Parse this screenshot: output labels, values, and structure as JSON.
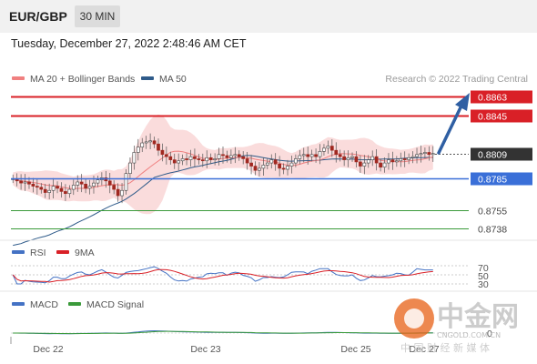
{
  "header": {
    "symbol": "EUR/GBP",
    "timeframe": "30 MIN"
  },
  "timestamp": "Tuesday, December 27, 2022 2:48:46 AM CET",
  "main_legend": {
    "items": [
      {
        "label": "MA 20 + Bollinger Bands",
        "color": "#f08080"
      },
      {
        "label": "MA 50",
        "color": "#2f5b8a"
      }
    ],
    "credit": "Research © 2022 Trading Central"
  },
  "price_levels": [
    {
      "label": "0.8863",
      "value": 0.8863,
      "color": "#d92027",
      "style": "resistance"
    },
    {
      "label": "0.8845",
      "value": 0.8845,
      "color": "#d92027",
      "style": "resistance"
    },
    {
      "label": "0.8809",
      "value": 0.8809,
      "color": "#333333",
      "style": "last-price"
    },
    {
      "label": "0.8785",
      "value": 0.8785,
      "color": "#3a6fd8",
      "style": "pivot"
    },
    {
      "label": "0.8755",
      "value": 0.8755,
      "color": "#3a9a3a",
      "style": "support"
    },
    {
      "label": "0.8738",
      "value": 0.8738,
      "color": "#3a9a3a",
      "style": "support"
    }
  ],
  "rsi_legend": [
    {
      "label": "RSI",
      "color": "#4472c4"
    },
    {
      "label": "9MA",
      "color": "#d92027"
    }
  ],
  "rsi_levels": [
    "70",
    "50",
    "30"
  ],
  "macd_legend": [
    {
      "label": "MACD",
      "color": "#4472c4"
    },
    {
      "label": "MACD Signal",
      "color": "#3a9a3a"
    }
  ],
  "macd_zero_label": "0",
  "x_axis_labels": [
    "Dec 22",
    "Dec 23",
    "Dec 25",
    "Dec 27"
  ],
  "watermark": {
    "title": "中金网",
    "subtitle": "中 国 财 经 新 媒 体",
    "domain": "CNGOLD.COM.CN"
  },
  "chart_data": {
    "type": "candlestick",
    "title": "EUR/GBP 30 MIN",
    "series": [
      {
        "name": "MA 20 + Bollinger Bands"
      },
      {
        "name": "MA 50"
      }
    ],
    "levels": [
      0.8863,
      0.8845,
      0.8809,
      0.8785,
      0.8755,
      0.8738
    ],
    "last_price": 0.8809,
    "x_tick_labels": [
      "Dec 22",
      "Dec 23",
      "Dec 25",
      "Dec 27"
    ],
    "indicators": [
      {
        "name": "RSI",
        "levels": [
          70,
          50,
          30
        ],
        "series": [
          "RSI",
          "9MA"
        ]
      },
      {
        "name": "MACD",
        "zero_line": 0,
        "series": [
          "MACD",
          "MACD Signal"
        ]
      }
    ],
    "close_path": [
      0.8785,
      0.8783,
      0.8781,
      0.8782,
      0.878,
      0.8778,
      0.8777,
      0.8775,
      0.8772,
      0.8774,
      0.8778,
      0.8776,
      0.8773,
      0.8771,
      0.8775,
      0.8779,
      0.8782,
      0.878,
      0.8776,
      0.8778,
      0.8781,
      0.8784,
      0.8786,
      0.8783,
      0.8779,
      0.8775,
      0.8769,
      0.8774,
      0.879,
      0.88,
      0.881,
      0.8815,
      0.8819,
      0.882,
      0.8821,
      0.8818,
      0.8812,
      0.8808,
      0.8806,
      0.8803,
      0.88,
      0.8802,
      0.8804,
      0.8803,
      0.8806,
      0.8804,
      0.8803,
      0.8802,
      0.8805,
      0.8803,
      0.8804,
      0.8808,
      0.8807,
      0.8805,
      0.8807,
      0.8808,
      0.8806,
      0.8804,
      0.88,
      0.8797,
      0.8793,
      0.8795,
      0.8798,
      0.88,
      0.8803,
      0.8799,
      0.8795,
      0.8794,
      0.8797,
      0.88,
      0.8804,
      0.8807,
      0.8808,
      0.8806,
      0.8808,
      0.8806,
      0.8811,
      0.8814,
      0.8816,
      0.8812,
      0.8808,
      0.8806,
      0.8803,
      0.8805,
      0.8806,
      0.8801,
      0.8797,
      0.88,
      0.8803,
      0.8806,
      0.88,
      0.8796,
      0.88,
      0.8803,
      0.8801,
      0.8802,
      0.8804,
      0.8803,
      0.8805,
      0.8806,
      0.8808,
      0.8809,
      0.881,
      0.8808,
      0.8809
    ]
  }
}
